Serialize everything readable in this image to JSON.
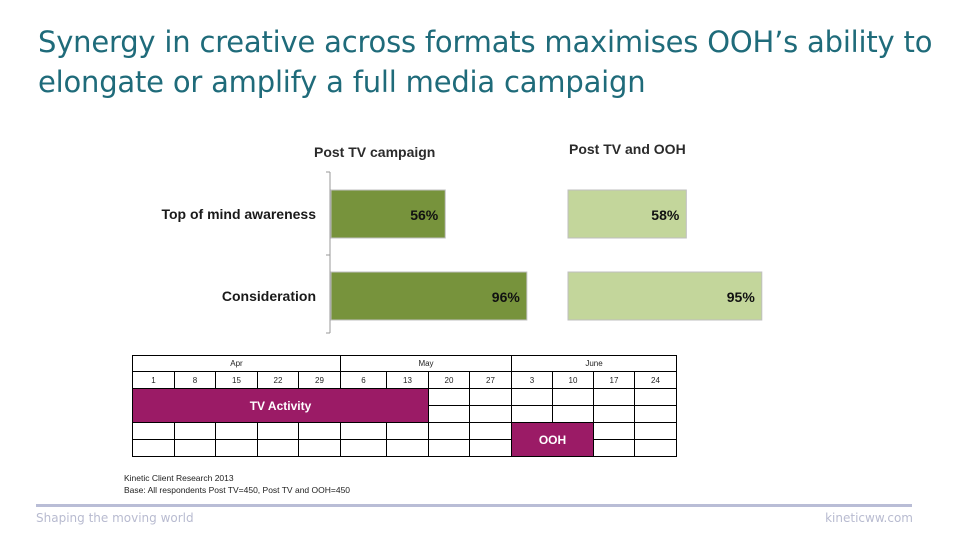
{
  "title": "Synergy in creative across formats maximises OOH’s ability to elongate or amplify a full media campaign",
  "chart_data": [
    {
      "type": "bar",
      "title": "Post TV campaign",
      "categories": [
        "Top of mind awareness",
        "Consideration"
      ],
      "values": [
        56,
        96
      ],
      "labels": [
        "56%",
        "96%"
      ],
      "color": "#77933c",
      "xlim": [
        0,
        100
      ]
    },
    {
      "type": "bar",
      "title": "Post TV and OOH",
      "categories": [
        "Top of mind awareness",
        "Consideration"
      ],
      "values": [
        58,
        95
      ],
      "labels": [
        "58%",
        "95%"
      ],
      "color": "#c3d69b",
      "xlim": [
        0,
        100
      ]
    }
  ],
  "schedule": {
    "months": [
      "Apr",
      "May",
      "June"
    ],
    "dates": [
      "1",
      "8",
      "15",
      "22",
      "29",
      "6",
      "13",
      "20",
      "27",
      "3",
      "10",
      "17",
      "24"
    ],
    "tv_label": "TV Activity",
    "ooh_label": "OOH",
    "highlight_color": "#9b1b66"
  },
  "source": {
    "line1": "Kinetic Client Research 2013",
    "line2": "Base: All respondents Post TV=450, Post TV and OOH=450"
  },
  "footer": {
    "left": "Shaping the moving world",
    "right": "kineticww.com"
  }
}
